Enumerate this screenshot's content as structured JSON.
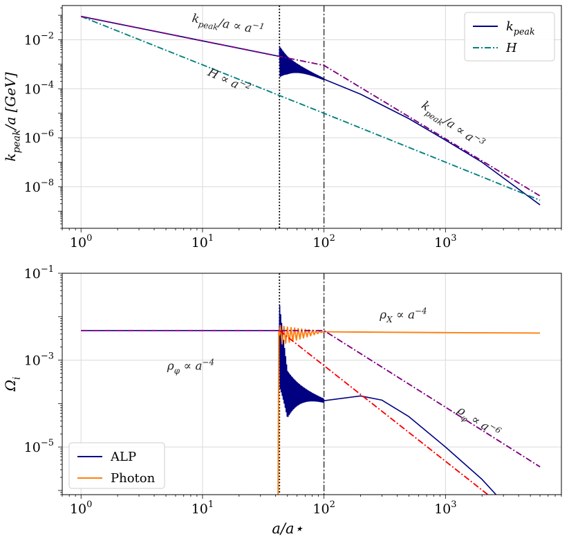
{
  "chart_data": [
    {
      "type": "line",
      "xscale": "log",
      "yscale": "log",
      "xlim": [
        0.7,
        9000
      ],
      "ylim": [
        2e-10,
        0.25
      ],
      "xticks": [
        {
          "v": 1,
          "base": "10",
          "exp": "0"
        },
        {
          "v": 10,
          "base": "10",
          "exp": "1"
        },
        {
          "v": 100,
          "base": "10",
          "exp": "2"
        },
        {
          "v": 1000,
          "base": "10",
          "exp": "3"
        }
      ],
      "yticks": [
        {
          "v": 0.01,
          "base": "10",
          "exp": "−2"
        },
        {
          "v": 0.0001,
          "base": "10",
          "exp": "−4"
        },
        {
          "v": 1e-06,
          "base": "10",
          "exp": "−6"
        },
        {
          "v": 1e-08,
          "base": "10",
          "exp": "−8"
        }
      ],
      "ylabel": "k_peak/a [GeV]",
      "xlabel": "",
      "grid": true,
      "legend_position": "top-right",
      "vlines": [
        {
          "x": 43,
          "style": "dotted",
          "color": "#000000"
        },
        {
          "x": 100,
          "style": "dashdot",
          "color": "#000000"
        }
      ],
      "series": [
        {
          "name": "k_peak",
          "style": "solid",
          "color": "#000080",
          "x": [
            1,
            43,
            50,
            100,
            200,
            500,
            1000,
            2000,
            6000
          ],
          "y": [
            0.09,
            0.0021,
            0.0012,
            0.00025,
            6e-05,
            6e-06,
            8e-07,
            1e-07,
            1.8e-09
          ],
          "oscillation": {
            "x_start": 43,
            "x_end": 100
          }
        },
        {
          "name": "H",
          "style": "dashdot",
          "color": "#008080",
          "x": [
            1,
            100,
            6000
          ],
          "y": [
            0.09,
            1e-05,
            2.8e-09
          ]
        },
        {
          "name": "",
          "style": "dashdot",
          "color": "#800080",
          "x": [
            1,
            43,
            100,
            6000
          ],
          "y": [
            0.09,
            0.0021,
            0.0009,
            4.2e-09
          ]
        }
      ],
      "annotations": [
        {
          "text": "k_peak/a ∝ a^−1",
          "x": 16,
          "y": 0.03,
          "rotation": 10
        },
        {
          "text": "H ∝ a^−2",
          "x": 16,
          "y": 0.00015,
          "rotation": 25
        },
        {
          "text": "k_peak/a ∝ a^−3",
          "x": 1100,
          "y": 2.5e-06,
          "rotation": 35
        }
      ]
    },
    {
      "type": "line",
      "xscale": "log",
      "yscale": "log",
      "xlim": [
        0.7,
        9000
      ],
      "ylim": [
        8e-07,
        0.1
      ],
      "xticks": [
        {
          "v": 1,
          "base": "10",
          "exp": "0"
        },
        {
          "v": 10,
          "base": "10",
          "exp": "1"
        },
        {
          "v": 100,
          "base": "10",
          "exp": "2"
        },
        {
          "v": 1000,
          "base": "10",
          "exp": "3"
        }
      ],
      "yticks": [
        {
          "v": 0.1,
          "base": "10",
          "exp": "−1"
        },
        {
          "v": 0.001,
          "base": "10",
          "exp": "−3"
        },
        {
          "v": 1e-05,
          "base": "10",
          "exp": "−5"
        }
      ],
      "ylabel": "Ω_i",
      "xlabel": "a/a⋆",
      "grid": true,
      "legend_position": "bottom-left",
      "vlines": [
        {
          "x": 43,
          "style": "dotted",
          "color": "#000000"
        },
        {
          "x": 100,
          "style": "dashdot",
          "color": "#000000"
        }
      ],
      "series": [
        {
          "name": "ALP",
          "style": "solid",
          "color": "#000080",
          "x": [
            1,
            43,
            50,
            100,
            200,
            300,
            500,
            1000,
            2000,
            5000
          ],
          "y": [
            0.0048,
            0.0048,
            0.00025,
            0.00012,
            0.00015,
            0.00012,
            5e-05,
            1e-05,
            1.8e-06,
            1.1e-07
          ],
          "oscillation": {
            "x_start": 43,
            "x_end": 100
          }
        },
        {
          "name": "Photon",
          "style": "solid",
          "color": "#ff7f0e",
          "x": [
            1,
            43,
            50,
            100,
            300,
            1000,
            6000
          ],
          "y": [
            0,
            0,
            0.0038,
            0.0045,
            0.0044,
            0.0043,
            0.0042
          ]
        },
        {
          "name": "",
          "style": "dashdot",
          "color": "#800080",
          "x": [
            1,
            100,
            6000
          ],
          "y": [
            0.0048,
            0.0048,
            3.5e-06
          ]
        },
        {
          "name": "",
          "style": "dashdot",
          "color": "#ff0000",
          "x": [
            43,
            5500
          ],
          "y": [
            0.0048,
            1.1e-07
          ]
        }
      ],
      "annotations": [
        {
          "text": "ρ_φ ∝ a^−4",
          "x": 8,
          "y": 0.0006,
          "rotation": 0
        },
        {
          "text": "ρ_X ∝ a^−4",
          "x": 450,
          "y": 0.009,
          "rotation": 0
        },
        {
          "text": "ρ_φ ∝ a^−6",
          "x": 1800,
          "y": 3.2e-05,
          "rotation": 33
        }
      ]
    }
  ]
}
